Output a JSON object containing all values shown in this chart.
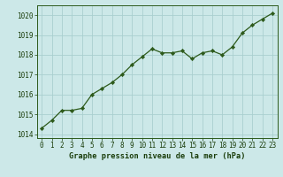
{
  "x": [
    0,
    1,
    2,
    3,
    4,
    5,
    6,
    7,
    8,
    9,
    10,
    11,
    12,
    13,
    14,
    15,
    16,
    17,
    18,
    19,
    20,
    21,
    22,
    23
  ],
  "y": [
    1014.3,
    1014.7,
    1015.2,
    1015.2,
    1015.3,
    1016.0,
    1016.3,
    1016.6,
    1017.0,
    1017.5,
    1017.9,
    1018.3,
    1018.1,
    1018.1,
    1018.2,
    1017.8,
    1018.1,
    1018.2,
    1018.0,
    1018.4,
    1019.1,
    1019.5,
    1019.8,
    1020.1
  ],
  "line_color": "#2d5a1b",
  "marker": "D",
  "marker_size": 2.2,
  "bg_color": "#cce8e8",
  "grid_color": "#aacfcf",
  "xlabel": "Graphe pression niveau de la mer (hPa)",
  "xlabel_color": "#1a3d0a",
  "tick_color": "#1a3d0a",
  "ylim": [
    1013.8,
    1020.5
  ],
  "yticks": [
    1014,
    1015,
    1016,
    1017,
    1018,
    1019,
    1020
  ],
  "xlim": [
    -0.5,
    23.5
  ],
  "xticks": [
    0,
    1,
    2,
    3,
    4,
    5,
    6,
    7,
    8,
    9,
    10,
    11,
    12,
    13,
    14,
    15,
    16,
    17,
    18,
    19,
    20,
    21,
    22,
    23
  ],
  "spine_color": "#2d5a1b",
  "font_color": "#1a3d0a",
  "tick_fontsize": 5.5,
  "xlabel_fontsize": 6.2
}
